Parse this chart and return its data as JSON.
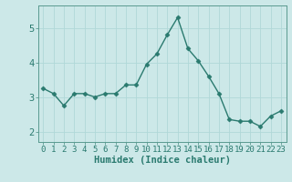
{
  "x": [
    0,
    1,
    2,
    3,
    4,
    5,
    6,
    7,
    8,
    9,
    10,
    11,
    12,
    13,
    14,
    15,
    16,
    17,
    18,
    19,
    20,
    21,
    22,
    23
  ],
  "y": [
    3.25,
    3.1,
    2.75,
    3.1,
    3.1,
    3.0,
    3.1,
    3.1,
    3.35,
    3.35,
    3.95,
    4.25,
    4.8,
    5.3,
    4.4,
    4.05,
    3.6,
    3.1,
    2.35,
    2.3,
    2.3,
    2.15,
    2.45,
    2.6
  ],
  "line_color": "#2a7a6f",
  "marker": "D",
  "marker_size": 2.5,
  "bg_color": "#cce8e8",
  "grid_color": "#b0d8d8",
  "xlabel": "Humidex (Indice chaleur)",
  "xlabel_fontsize": 7.5,
  "tick_color": "#2a7a6f",
  "ylim": [
    1.7,
    5.65
  ],
  "yticks": [
    2,
    3,
    4,
    5
  ],
  "xticks": [
    0,
    1,
    2,
    3,
    4,
    5,
    6,
    7,
    8,
    9,
    10,
    11,
    12,
    13,
    14,
    15,
    16,
    17,
    18,
    19,
    20,
    21,
    22,
    23
  ],
  "tick_fontsize": 6.5,
  "spine_color": "#5a9a90"
}
